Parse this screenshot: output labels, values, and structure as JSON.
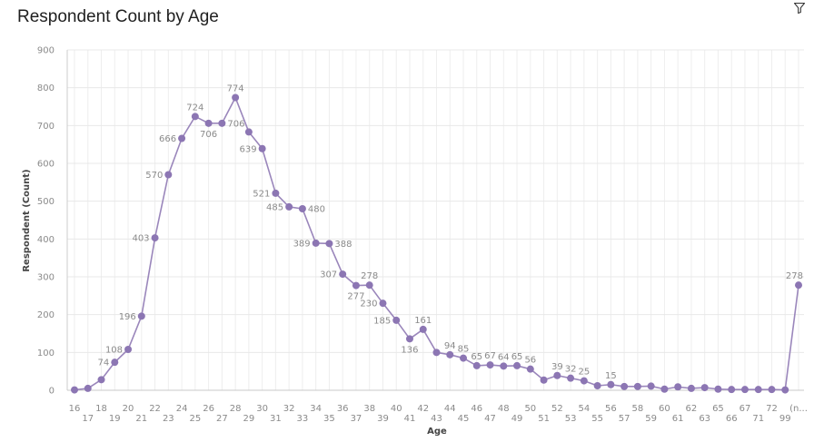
{
  "chart_data": {
    "type": "line",
    "title": "Respondent Count by Age",
    "xlabel": "Age",
    "ylabel": "Respondent (Count)",
    "ylim": [
      0,
      900
    ],
    "yticks": [
      0,
      100,
      200,
      300,
      400,
      500,
      600,
      700,
      800,
      900
    ],
    "grid": true,
    "categories": [
      "16",
      "17",
      "18",
      "19",
      "20",
      "21",
      "22",
      "23",
      "24",
      "25",
      "26",
      "27",
      "28",
      "29",
      "30",
      "31",
      "32",
      "33",
      "34",
      "35",
      "36",
      "37",
      "38",
      "39",
      "40",
      "41",
      "42",
      "43",
      "44",
      "45",
      "46",
      "47",
      "48",
      "49",
      "50",
      "51",
      "52",
      "53",
      "54",
      "55",
      "56",
      "57",
      "58",
      "59",
      "60",
      "61",
      "62",
      "63",
      "65",
      "66",
      "67",
      "71",
      "72",
      "99",
      "(n..."
    ],
    "values": [
      1,
      5,
      28,
      74,
      108,
      196,
      403,
      570,
      666,
      724,
      706,
      706,
      774,
      683,
      639,
      521,
      485,
      480,
      389,
      388,
      307,
      277,
      278,
      230,
      185,
      136,
      161,
      100,
      94,
      85,
      65,
      67,
      64,
      65,
      56,
      27,
      39,
      32,
      25,
      12,
      15,
      10,
      10,
      11,
      3,
      9,
      5,
      7,
      3,
      2,
      2,
      2,
      2,
      1,
      278
    ],
    "data_labels": [
      {
        "index": 3,
        "text": "74"
      },
      {
        "index": 4,
        "text": "108"
      },
      {
        "index": 5,
        "text": "196"
      },
      {
        "index": 6,
        "text": "403"
      },
      {
        "index": 7,
        "text": "570"
      },
      {
        "index": 8,
        "text": "666"
      },
      {
        "index": 9,
        "text": "724"
      },
      {
        "index": 10,
        "text": "706"
      },
      {
        "index": 11,
        "text": "706"
      },
      {
        "index": 12,
        "text": "774"
      },
      {
        "index": 14,
        "text": "639"
      },
      {
        "index": 15,
        "text": "521"
      },
      {
        "index": 16,
        "text": "485"
      },
      {
        "index": 17,
        "text": "480"
      },
      {
        "index": 18,
        "text": "389"
      },
      {
        "index": 19,
        "text": "388"
      },
      {
        "index": 20,
        "text": "307"
      },
      {
        "index": 21,
        "text": "277"
      },
      {
        "index": 22,
        "text": "278"
      },
      {
        "index": 23,
        "text": "230"
      },
      {
        "index": 24,
        "text": "185"
      },
      {
        "index": 25,
        "text": "136"
      },
      {
        "index": 26,
        "text": "161"
      },
      {
        "index": 28,
        "text": "94"
      },
      {
        "index": 29,
        "text": "85"
      },
      {
        "index": 30,
        "text": "65"
      },
      {
        "index": 31,
        "text": "67"
      },
      {
        "index": 32,
        "text": "64"
      },
      {
        "index": 33,
        "text": "65"
      },
      {
        "index": 34,
        "text": "56"
      },
      {
        "index": 36,
        "text": "39"
      },
      {
        "index": 37,
        "text": "32"
      },
      {
        "index": 38,
        "text": "25"
      },
      {
        "index": 40,
        "text": "15"
      },
      {
        "index": 54,
        "text": "278"
      }
    ],
    "line_color": "#9a86bb",
    "marker_color": "#8c76b3"
  },
  "toolbar": {
    "filter_icon": "filter-icon"
  }
}
